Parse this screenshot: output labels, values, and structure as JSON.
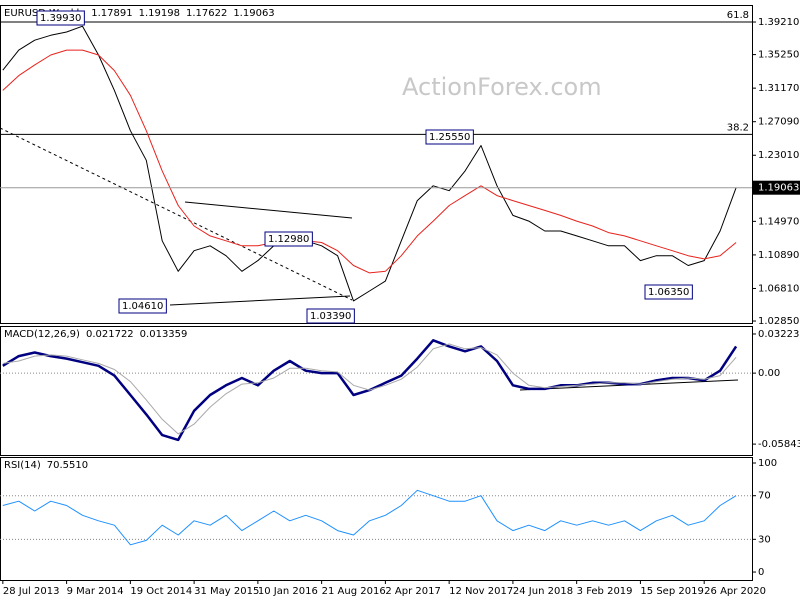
{
  "chart_data": {
    "type": "stock",
    "watermark": "ActionForex.com",
    "x": [
      "2013-07-28",
      "2013-09-22",
      "2013-11-17",
      "2014-01-12",
      "2014-03-09",
      "2014-05-04",
      "2014-06-29",
      "2014-08-24",
      "2014-10-19",
      "2014-12-14",
      "2015-02-08",
      "2015-04-05",
      "2015-05-31",
      "2015-07-26",
      "2015-09-20",
      "2015-11-15",
      "2016-01-10",
      "2016-03-06",
      "2016-05-01",
      "2016-06-26",
      "2016-08-21",
      "2016-10-16",
      "2016-12-11",
      "2017-02-05",
      "2017-04-02",
      "2017-05-28",
      "2017-07-23",
      "2017-09-17",
      "2017-11-12",
      "2018-01-07",
      "2018-03-04",
      "2018-04-29",
      "2018-06-24",
      "2018-08-19",
      "2018-10-14",
      "2018-12-09",
      "2019-02-03",
      "2019-03-31",
      "2019-05-26",
      "2019-07-21",
      "2019-09-15",
      "2019-11-10",
      "2020-01-05",
      "2020-03-01",
      "2020-04-26",
      "2020-06-21",
      "2020-08-16"
    ],
    "xlim": [
      "2013-07-18",
      "2020-10-11"
    ],
    "xticks": [
      {
        "value": "2013-07-28",
        "label": "28 Jul 2013"
      },
      {
        "value": "2014-03-09",
        "label": "9 Mar 2014"
      },
      {
        "value": "2014-10-19",
        "label": "19 Oct 2014"
      },
      {
        "value": "2015-05-31",
        "label": "31 May 2015"
      },
      {
        "value": "2016-01-10",
        "label": "10 Jan 2016"
      },
      {
        "value": "2016-08-21",
        "label": "21 Aug 2016"
      },
      {
        "value": "2017-04-02",
        "label": "2 Apr 2017"
      },
      {
        "value": "2017-11-12",
        "label": "12 Nov 2017"
      },
      {
        "value": "2018-06-24",
        "label": "24 Jun 2018"
      },
      {
        "value": "2019-02-03",
        "label": "3 Feb 2019"
      },
      {
        "value": "2019-09-15",
        "label": "15 Sep 2019"
      },
      {
        "value": "2020-04-26",
        "label": "26 Apr 2020"
      }
    ],
    "panels": [
      {
        "type": "line",
        "title": "EURUSD,Weekly",
        "readings": [
          1.17891,
          1.19198,
          1.17622,
          1.19063
        ],
        "ylim": [
          1.0261,
          1.4128
        ],
        "yticks": [
          {
            "value": 1.3921,
            "label": "1.39210"
          },
          {
            "value": 1.3525,
            "label": "1.35250"
          },
          {
            "value": 1.3117,
            "label": "1.31170"
          },
          {
            "value": 1.2709,
            "label": "1.27090"
          },
          {
            "value": 1.2301,
            "label": "1.23010"
          },
          {
            "value": 1.1893,
            "label": "1.18930"
          },
          {
            "value": 1.1497,
            "label": "1.14970"
          },
          {
            "value": 1.1089,
            "label": "1.10890"
          },
          {
            "value": 1.0681,
            "label": "1.06810"
          },
          {
            "value": 1.0285,
            "label": "1.02850"
          }
        ],
        "levels": [
          {
            "value": 1.3921,
            "label": "61.8"
          },
          {
            "value": 1.2555,
            "label": "38.2"
          }
        ],
        "annotations": [
          "1.39930",
          "1.25550",
          "1.12980",
          "1.04610",
          "1.03390",
          "1.06350"
        ],
        "series": [
          {
            "color": "#000000",
            "width": 1,
            "values": [
              1.3335,
              1.358,
              1.37,
              1.376,
              1.38,
              1.387,
              1.352,
              1.309,
              1.26,
              1.224,
              1.126,
              1.089,
              1.114,
              1.12,
              1.108,
              1.089,
              1.102,
              1.12,
              1.132,
              1.126,
              1.12,
              1.108,
              1.053,
              1.065,
              1.077,
              1.126,
              1.175,
              1.193,
              1.187,
              1.211,
              1.242,
              1.193,
              1.157,
              1.15,
              1.138,
              1.138,
              1.132,
              1.126,
              1.12,
              1.12,
              1.102,
              1.108,
              1.108,
              1.096,
              1.102,
              1.138,
              1.19063
            ]
          },
          {
            "color": "#e8221c",
            "width": 1,
            "values": [
              1.309,
              1.327,
              1.34,
              1.352,
              1.358,
              1.358,
              1.352,
              1.333,
              1.303,
              1.26,
              1.211,
              1.169,
              1.144,
              1.132,
              1.126,
              1.12,
              1.12,
              1.124,
              1.126,
              1.126,
              1.124,
              1.114,
              1.096,
              1.087,
              1.089,
              1.108,
              1.132,
              1.15,
              1.169,
              1.181,
              1.193,
              1.181,
              1.175,
              1.169,
              1.163,
              1.157,
              1.15,
              1.144,
              1.136,
              1.132,
              1.126,
              1.12,
              1.114,
              1.108,
              1.104,
              1.108,
              1.124
            ]
          }
        ]
      },
      {
        "type": "line",
        "title": "MACD(12,26,9)",
        "readings": [
          0.021722,
          0.013359
        ],
        "ylim": [
          -0.0674,
          0.0388
        ],
        "yticks": [
          0.032235,
          {
            "value": 0,
            "label": "0.00"
          },
          -0.058434
        ],
        "levels": [
          0
        ],
        "series": [
          {
            "color": "#000080",
            "width": 2.5,
            "values": [
              0.006,
              0.014,
              0.017,
              0.014,
              0.012,
              0.009,
              0.006,
              -0.002,
              -0.018,
              -0.034,
              -0.051,
              -0.055,
              -0.031,
              -0.018,
              -0.01,
              -0.004,
              -0.01,
              0.002,
              0.01,
              0.002,
              0.0,
              0.0,
              -0.018,
              -0.014,
              -0.008,
              -0.002,
              0.012,
              0.027,
              0.022,
              0.018,
              0.022,
              0.01,
              -0.01,
              -0.013,
              -0.013,
              -0.01,
              -0.01,
              -0.008,
              -0.008,
              -0.009,
              -0.009,
              -0.006,
              -0.004,
              -0.004,
              -0.006,
              0.002,
              0.022
            ]
          },
          {
            "color": "#a9a9a9",
            "width": 1,
            "values": [
              0.008,
              0.01,
              0.014,
              0.015,
              0.014,
              0.011,
              0.008,
              0.003,
              -0.007,
              -0.022,
              -0.038,
              -0.05,
              -0.042,
              -0.028,
              -0.017,
              -0.009,
              -0.008,
              -0.004,
              0.004,
              0.004,
              0.002,
              0.001,
              -0.01,
              -0.014,
              -0.01,
              -0.005,
              0.005,
              0.02,
              0.024,
              0.02,
              0.021,
              0.015,
              0.0,
              -0.01,
              -0.012,
              -0.011,
              -0.01,
              -0.009,
              -0.008,
              -0.008,
              -0.009,
              -0.007,
              -0.005,
              -0.004,
              -0.005,
              -0.002,
              0.013
            ]
          }
        ]
      },
      {
        "type": "line",
        "title": "RSI(14)",
        "readings": [
          {
            "value": 70.551,
            "label": "70.5510"
          }
        ],
        "ylim": [
          -7.3,
          105.5
        ],
        "yticks": [
          100,
          70,
          30,
          0
        ],
        "levels": [
          70,
          30
        ],
        "series": [
          {
            "color": "#1e90ff",
            "width": 1,
            "values": [
              61,
              65,
              56,
              65,
              61,
              52,
              47,
              43,
              25,
              29,
              43,
              34,
              47,
              43,
              52,
              38,
              47,
              56,
              47,
              52,
              47,
              38,
              34,
              47,
              52,
              61,
              75,
              70,
              65,
              65,
              70,
              47,
              38,
              43,
              38,
              47,
              43,
              47,
              43,
              47,
              38,
              47,
              52,
              43,
              47,
              61,
              70
            ]
          }
        ]
      }
    ]
  }
}
